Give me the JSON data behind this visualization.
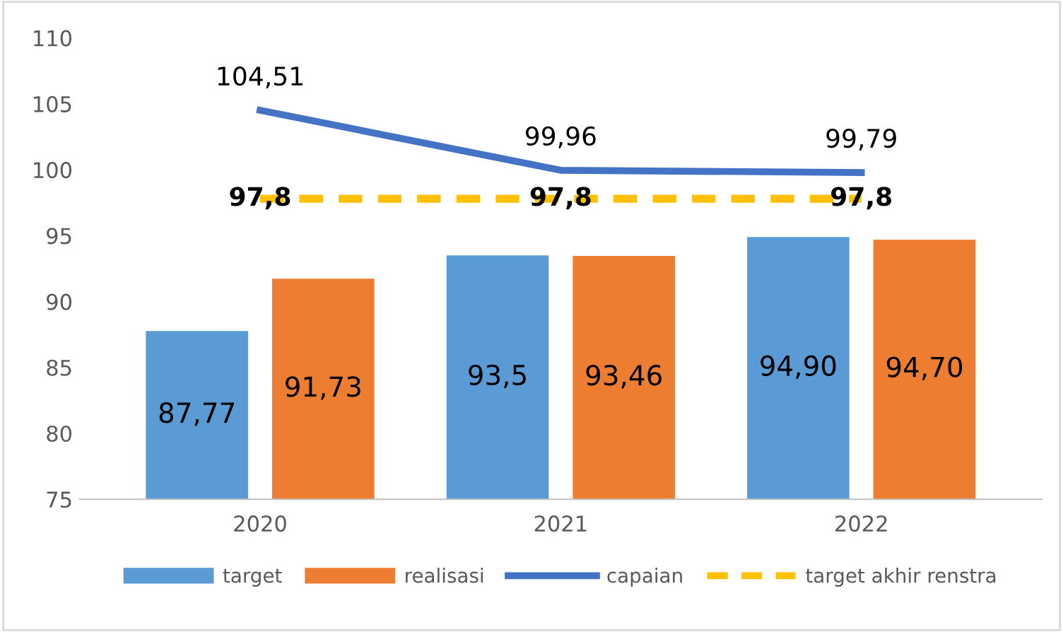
{
  "chart_data": {
    "type": "bar",
    "categories": [
      "2020",
      "2021",
      "2022"
    ],
    "series": [
      {
        "name": "target",
        "color": "#5b9bd5",
        "values": [
          87.77,
          93.5,
          94.9
        ],
        "value_labels": [
          "87,77",
          "93,5",
          "94,90"
        ]
      },
      {
        "name": "realisasi",
        "color": "#ed7d31",
        "values": [
          91.73,
          93.46,
          94.7
        ],
        "value_labels": [
          "91,73",
          "93,46",
          "94,70"
        ]
      },
      {
        "name": "capaian",
        "type": "line",
        "color": "#4472c4",
        "line_style": "solid",
        "values": [
          104.51,
          99.96,
          99.79
        ],
        "value_labels": [
          "104,51",
          "99,96",
          "99,79"
        ]
      },
      {
        "name": "target akhir renstra",
        "type": "line",
        "color": "#ffc000",
        "line_style": "dashed",
        "values": [
          97.8,
          97.8,
          97.8
        ],
        "value_labels": [
          "97,8",
          "97,8",
          "97,8"
        ]
      }
    ],
    "ylim": [
      75,
      110
    ],
    "yticks": [
      75,
      80,
      85,
      90,
      95,
      100,
      105,
      110
    ],
    "grid": false,
    "legend": "bottom",
    "marker": "none"
  }
}
